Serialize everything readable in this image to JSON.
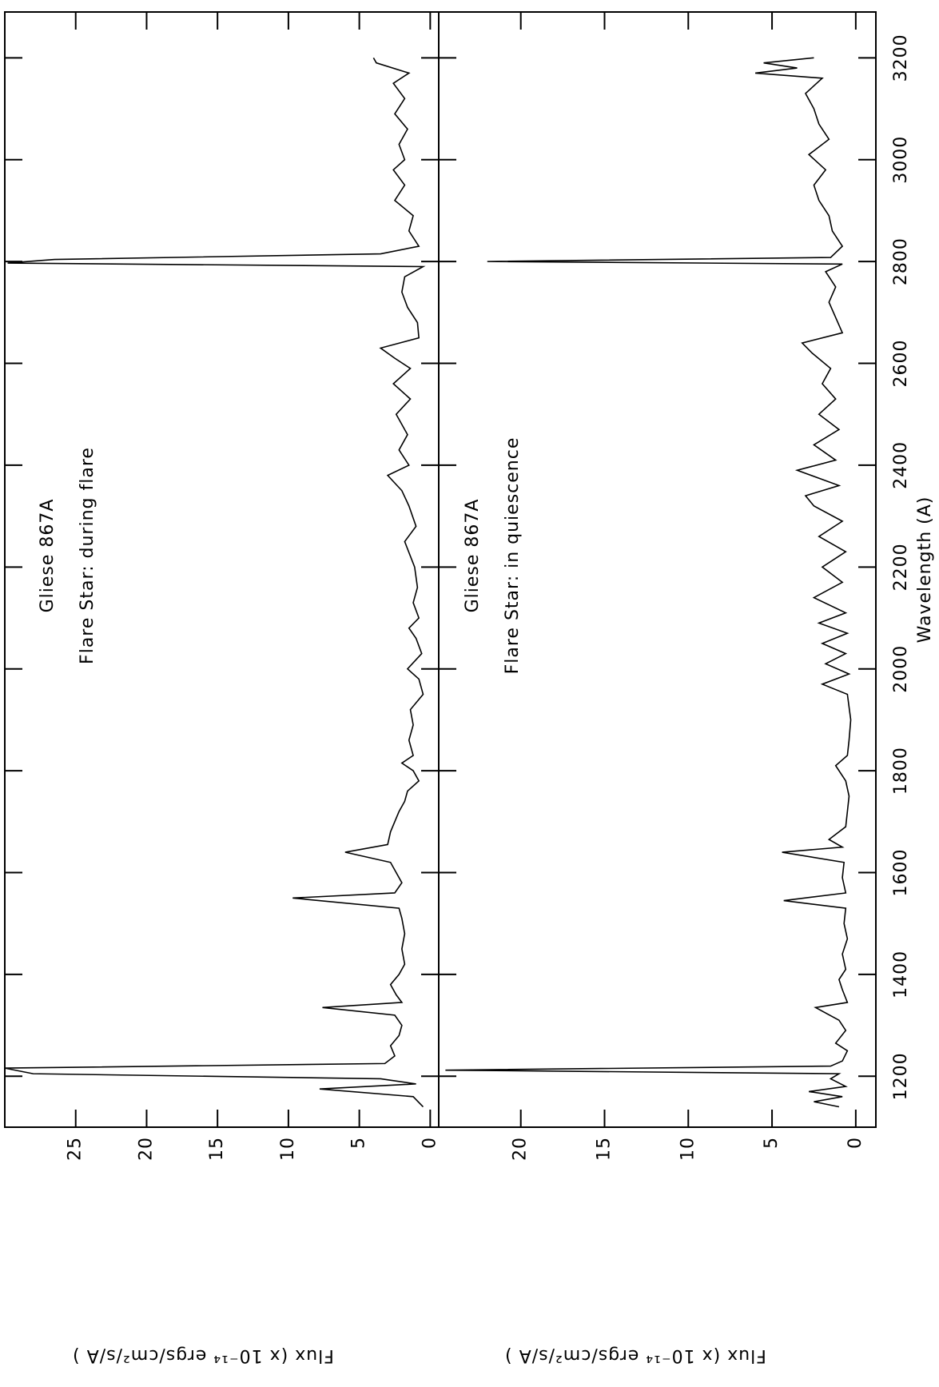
{
  "chart_data": [
    {
      "type": "line",
      "annotations": [
        "Gliese 867A",
        "Flare Star: during flare"
      ],
      "ylabel": "Flux (x 10⁻¹⁴ ergs/cm²/s/A )",
      "xlim": [
        1100,
        3290
      ],
      "xticks": [
        1200,
        1400,
        1600,
        1800,
        2000,
        2200,
        2400,
        2600,
        2800,
        3000,
        3200
      ],
      "ylim": [
        -0.6,
        30
      ],
      "yticks": [
        0,
        5,
        10,
        15,
        20,
        25
      ],
      "x": [
        1140,
        1160,
        1175,
        1185,
        1195,
        1205,
        1216,
        1225,
        1240,
        1260,
        1280,
        1300,
        1320,
        1335,
        1345,
        1360,
        1380,
        1400,
        1420,
        1450,
        1480,
        1510,
        1530,
        1550,
        1560,
        1580,
        1600,
        1620,
        1640,
        1655,
        1680,
        1700,
        1720,
        1740,
        1760,
        1780,
        1800,
        1815,
        1830,
        1860,
        1890,
        1920,
        1950,
        1980,
        2000,
        2030,
        2060,
        2080,
        2100,
        2130,
        2160,
        2200,
        2250,
        2280,
        2320,
        2350,
        2380,
        2400,
        2430,
        2460,
        2500,
        2530,
        2560,
        2590,
        2610,
        2630,
        2650,
        2680,
        2710,
        2740,
        2770,
        2790,
        2797,
        2804,
        2815,
        2830,
        2860,
        2890,
        2920,
        2950,
        2980,
        3000,
        3030,
        3060,
        3090,
        3120,
        3150,
        3170,
        3190,
        3200
      ],
      "series": [
        {
          "color": "#000000",
          "values": [
            0.5,
            1.2,
            7.8,
            1.0,
            3.5,
            28,
            30,
            3.2,
            2.5,
            2.8,
            2.2,
            2.0,
            2.5,
            7.6,
            2.0,
            2.4,
            2.8,
            2.2,
            1.8,
            2.0,
            1.8,
            2.0,
            2.2,
            9.7,
            2.5,
            2.0,
            2.4,
            2.8,
            6.0,
            3.0,
            2.8,
            2.5,
            2.2,
            1.8,
            1.6,
            0.8,
            1.2,
            2.0,
            1.2,
            1.5,
            1.2,
            1.4,
            0.5,
            0.8,
            1.6,
            0.6,
            1.0,
            1.5,
            0.8,
            1.2,
            0.9,
            1.1,
            1.8,
            1.0,
            1.5,
            2.0,
            3.0,
            1.5,
            2.2,
            1.6,
            2.4,
            1.4,
            2.6,
            1.4,
            2.5,
            3.5,
            0.8,
            0.9,
            1.6,
            2.0,
            1.8,
            0.5,
            29.8,
            26.5,
            3.5,
            0.8,
            1.5,
            1.2,
            2.5,
            1.8,
            2.6,
            1.8,
            2.2,
            1.6,
            2.5,
            1.8,
            2.6,
            1.5,
            3.8,
            4.0
          ]
        }
      ]
    },
    {
      "type": "line",
      "annotations": [
        "Gliese 867A",
        "Flare Star: in quiescence"
      ],
      "xlabel": "Wavelength (A)",
      "ylabel": "Flux (x 10⁻¹⁴ ergs/cm²/s/A )",
      "xlim": [
        1100,
        3290
      ],
      "xticks": [
        1200,
        1400,
        1600,
        1800,
        2000,
        2200,
        2400,
        2600,
        2800,
        3000,
        3200
      ],
      "ylim": [
        -1.2,
        24.9
      ],
      "yticks": [
        0,
        5,
        10,
        15,
        20
      ],
      "x": [
        1140,
        1150,
        1160,
        1170,
        1180,
        1195,
        1205,
        1212,
        1220,
        1230,
        1250,
        1265,
        1290,
        1310,
        1335,
        1345,
        1370,
        1390,
        1410,
        1440,
        1470,
        1500,
        1530,
        1545,
        1560,
        1590,
        1620,
        1640,
        1650,
        1665,
        1690,
        1720,
        1750,
        1780,
        1810,
        1830,
        1860,
        1900,
        1950,
        1970,
        1990,
        2010,
        2030,
        2050,
        2070,
        2090,
        2110,
        2140,
        2170,
        2200,
        2230,
        2260,
        2290,
        2320,
        2340,
        2360,
        2390,
        2410,
        2440,
        2470,
        2500,
        2530,
        2560,
        2590,
        2620,
        2640,
        2660,
        2690,
        2720,
        2750,
        2780,
        2795,
        2800,
        2808,
        2830,
        2860,
        2890,
        2920,
        2950,
        2980,
        3010,
        3040,
        3070,
        3100,
        3130,
        3160,
        3170,
        3180,
        3190,
        3200
      ],
      "series": [
        {
          "color": "#000000",
          "values": [
            1.0,
            2.5,
            0.8,
            2.8,
            0.6,
            1.5,
            1.0,
            24.5,
            1.5,
            0.8,
            0.5,
            1.2,
            0.6,
            1.0,
            2.4,
            0.5,
            0.8,
            1.0,
            0.6,
            0.8,
            0.5,
            0.7,
            0.6,
            4.3,
            0.6,
            0.8,
            0.7,
            4.4,
            0.8,
            1.6,
            0.6,
            0.5,
            0.4,
            0.6,
            1.2,
            0.5,
            0.4,
            0.3,
            0.5,
            2.0,
            0.4,
            1.8,
            0.6,
            2.0,
            0.5,
            2.2,
            0.6,
            2.5,
            0.8,
            2.0,
            0.6,
            2.2,
            0.8,
            2.5,
            3.0,
            1.0,
            3.5,
            1.2,
            2.5,
            1.0,
            2.2,
            1.2,
            2.0,
            1.5,
            2.6,
            3.2,
            0.8,
            1.2,
            1.6,
            1.2,
            1.8,
            0.8,
            22.0,
            1.5,
            0.8,
            1.4,
            1.6,
            2.2,
            2.5,
            1.8,
            2.8,
            1.6,
            2.2,
            2.5,
            3.0,
            2.0,
            6.0,
            3.5,
            5.5,
            2.5
          ]
        }
      ]
    }
  ]
}
